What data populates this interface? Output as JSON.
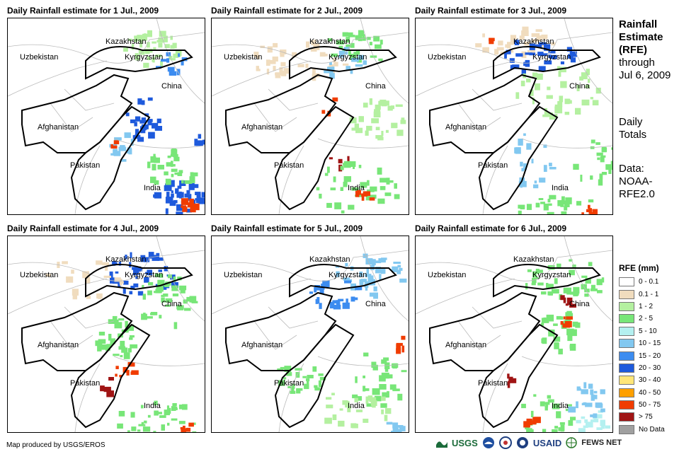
{
  "panels": [
    {
      "title": "Daily Rainfall estimate for 1 Jul., 2009",
      "labels": [
        "Kazakhstan",
        "Kyrgyzstan",
        "Uzbekistan",
        "China",
        "Afghanistan",
        "Pakistan",
        "India"
      ]
    },
    {
      "title": "Daily Rainfall estimate for 2 Jul., 2009",
      "labels": [
        "Kazakhstan",
        "Kyrgyzstan",
        "Uzbekistan",
        "China",
        "Afghanistan",
        "Pakistan",
        "India"
      ]
    },
    {
      "title": "Daily Rainfall estimate for 3 Jul., 2009",
      "labels": [
        "Kazakhstan",
        "Kyrgyzstan",
        "Uzbekistan",
        "China",
        "Afghanistan",
        "Pakistan",
        "India"
      ]
    },
    {
      "title": "Daily Rainfall estimate for 4 Jul., 2009",
      "labels": [
        "Kazakhstan",
        "Kyrgyzstan",
        "Uzbekistan",
        "China",
        "Afghanistan",
        "Pakistan",
        "India"
      ]
    },
    {
      "title": "Daily Rainfall estimate for 5 Jul., 2009",
      "labels": [
        "Kazakhstan",
        "Kyrgyzstan",
        "Uzbekistan",
        "China",
        "Afghanistan",
        "Pakistan",
        "India"
      ]
    },
    {
      "title": "Daily Rainfall estimate for 6 Jul., 2009",
      "labels": [
        "Kazakhstan",
        "Kyrgyzstan",
        "Uzbekistan",
        "China",
        "Afghanistan",
        "Pakistan",
        "India"
      ]
    }
  ],
  "side": {
    "heading": [
      "Rainfall",
      "Estimate",
      "(RFE)"
    ],
    "through": [
      "through",
      "Jul 6, 2009"
    ],
    "totals": [
      "Daily",
      "Totals"
    ],
    "data": [
      "Data:",
      "NOAA-",
      "RFE2.0"
    ]
  },
  "legend": {
    "title": "RFE (mm)",
    "items": [
      {
        "label": "0 - 0.1",
        "color": "#ffffff"
      },
      {
        "label": "0.1 - 1",
        "color": "#f0dcbe"
      },
      {
        "label": "1 - 2",
        "color": "#b4f0a0"
      },
      {
        "label": "2 - 5",
        "color": "#78e678"
      },
      {
        "label": "5 - 10",
        "color": "#b4f0f0"
      },
      {
        "label": "10 - 15",
        "color": "#82c8f0"
      },
      {
        "label": "15 - 20",
        "color": "#3c8cf0"
      },
      {
        "label": "20 - 30",
        "color": "#1e5adc"
      },
      {
        "label": "30 - 40",
        "color": "#ffe678"
      },
      {
        "label": "40 - 50",
        "color": "#ffa000"
      },
      {
        "label": "50 - 75",
        "color": "#f03c00"
      },
      {
        "label": "> 75",
        "color": "#a01414"
      },
      {
        "label": "No Data",
        "color": "#a0a0a0"
      }
    ]
  },
  "credit": "Map produced by USGS/EROS",
  "logos": {
    "usgs": "USGS",
    "usaid": "USAID",
    "fews": "FEWS NET"
  }
}
